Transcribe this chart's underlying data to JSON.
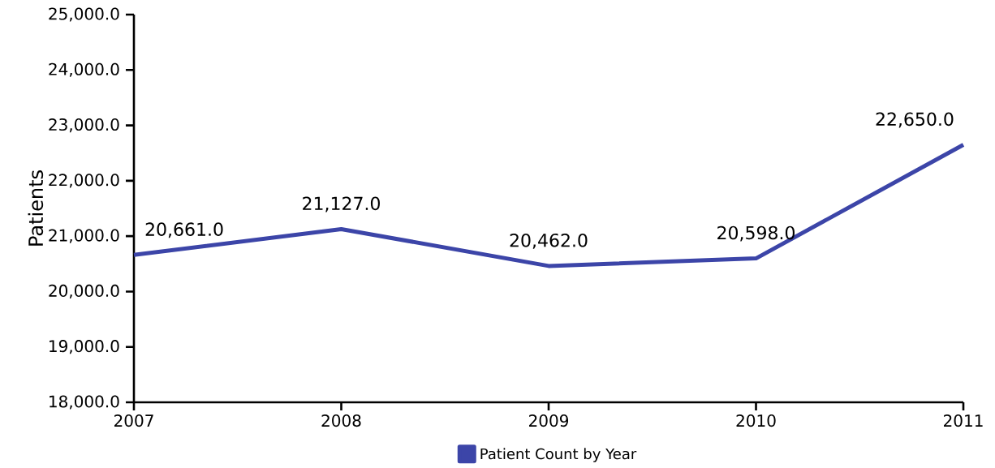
{
  "chart_data": {
    "type": "line",
    "ylabel": "Patients",
    "x": [
      2007,
      2008,
      2009,
      2010,
      2011
    ],
    "series": [
      {
        "name": "Patient Count by Year",
        "color": "#3c45a8",
        "values": [
          20661,
          21127,
          20462,
          20598,
          22650
        ],
        "value_labels": [
          "20,661.0",
          "21,127.0",
          "20,462.0",
          "20,598.0",
          "22,650.0"
        ]
      }
    ],
    "xlim": [
      2007,
      2011
    ],
    "xticks": [
      2007,
      2008,
      2009,
      2010,
      2011
    ],
    "ylim": [
      18000,
      25000
    ],
    "yticks": [
      {
        "value": 18000,
        "label": "18,000.0"
      },
      {
        "value": 19000,
        "label": "19,000.0"
      },
      {
        "value": 20000,
        "label": "20,000.0"
      },
      {
        "value": 21000,
        "label": "21,000.0"
      },
      {
        "value": 22000,
        "label": "22,000.0"
      },
      {
        "value": 23000,
        "label": "23,000.0"
      },
      {
        "value": 24000,
        "label": "24,000.0"
      },
      {
        "value": 25000,
        "label": "25,000.0"
      }
    ],
    "grid": false,
    "legend": "bottom",
    "marker": "none",
    "line_style": "solid"
  }
}
